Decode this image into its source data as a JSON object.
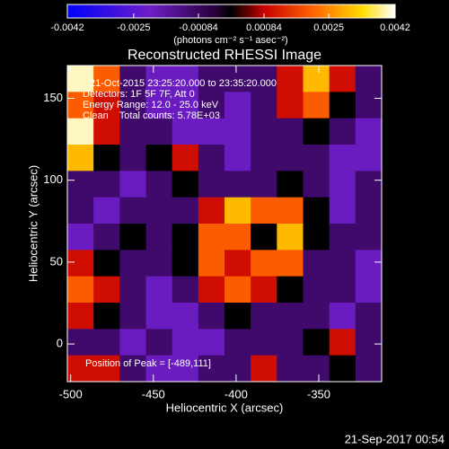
{
  "chart_data": {
    "type": "heatmap",
    "title": "Reconstructed RHESSI Image",
    "x_label": "Heliocentric X (arcsec)",
    "y_label": "Heliocentric Y (arcsec)",
    "xlim": [
      -502,
      -312
    ],
    "ylim": [
      -23,
      170
    ],
    "xticks": [
      -500,
      -450,
      -400,
      -350
    ],
    "yticks": [
      0,
      50,
      100,
      150
    ],
    "annotations": [
      "21-Oct-2015 23:25:20.000 to 23:35:20.000",
      "Detectors: 1F 5F 7F, Att 0",
      "Energy Range: 12.0 - 25.0 keV",
      "Clean    Total counts: 5.78E+03"
    ],
    "peak_label": "Position of Peak = [-489,111]",
    "footer": "21-Sep-2017 00:54",
    "colorbar": {
      "lim": [
        -0.0042,
        0.0042
      ],
      "ticks": [
        -0.0042,
        -0.0025,
        -0.00084,
        0.00084,
        0.0025,
        0.0042
      ],
      "label": "(photons cm⁻² s⁻¹ asec⁻²)"
    },
    "z": [
      [
        0.004,
        0.002,
        -0.001,
        -0.002,
        -0.002,
        -0.001,
        -0.001,
        -0.001,
        0.001,
        0.003,
        0.001,
        -0.001
      ],
      [
        0.002,
        0.001,
        -0.001,
        -0.002,
        -0.002,
        -0.001,
        -0.002,
        -0.001,
        0.001,
        0.002,
        0,
        -0.001
      ],
      [
        0.004,
        0.001,
        -0.001,
        -0.001,
        -0.002,
        -0.002,
        -0.002,
        -0.001,
        -0.001,
        0,
        -0.001,
        -0.002
      ],
      [
        0.003,
        0,
        -0.001,
        0,
        0.001,
        -0.001,
        -0.002,
        -0.001,
        -0.001,
        -0.001,
        -0.002,
        -0.002
      ],
      [
        -0.001,
        -0.001,
        -0.002,
        -0.001,
        0,
        -0.001,
        -0.001,
        -0.001,
        0,
        -0.001,
        -0.002,
        -0.001
      ],
      [
        -0.001,
        -0.002,
        -0.001,
        -0.001,
        -0.001,
        0.001,
        0.003,
        0.002,
        0.002,
        0,
        -0.002,
        -0.001
      ],
      [
        -0.002,
        -0.001,
        0,
        -0.001,
        0,
        0.002,
        0.002,
        0,
        0.003,
        0,
        -0.001,
        -0.001
      ],
      [
        0.001,
        0,
        -0.001,
        -0.001,
        0,
        0.002,
        0.001,
        0.002,
        0.002,
        -0.001,
        -0.001,
        -0.002
      ],
      [
        0.002,
        0.001,
        -0.001,
        -0.002,
        -0.001,
        0.001,
        0.002,
        0.001,
        0,
        -0.001,
        -0.001,
        -0.002
      ],
      [
        0.001,
        0,
        -0.001,
        -0.002,
        -0.002,
        -0.001,
        0,
        -0.001,
        -0.001,
        -0.001,
        -0.002,
        -0.001
      ],
      [
        -0.001,
        -0.001,
        -0.002,
        -0.001,
        -0.002,
        -0.002,
        -0.001,
        -0.001,
        -0.001,
        0,
        0.001,
        -0.001
      ],
      [
        0.001,
        0.001,
        -0.001,
        -0.002,
        -0.002,
        -0.001,
        -0.001,
        0.001,
        -0.001,
        -0.001,
        0,
        -0.001
      ]
    ]
  }
}
